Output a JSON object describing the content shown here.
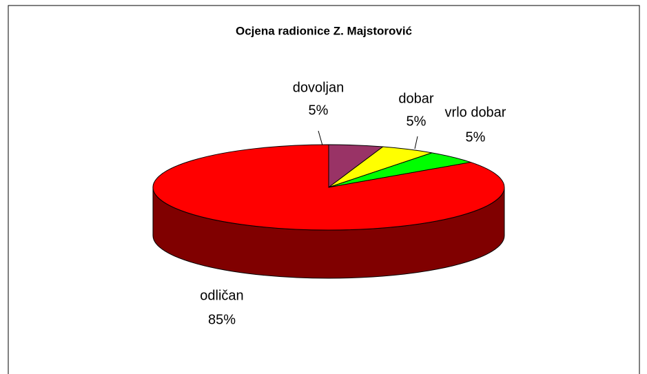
{
  "chart_data": {
    "type": "pie",
    "title": "Ocjena radionice Z. Majstorović",
    "categories": [
      "dovoljan",
      "dobar",
      "vrlo dobar",
      "odličan"
    ],
    "values": [
      5,
      5,
      5,
      85
    ],
    "value_labels": [
      "5%",
      "5%",
      "5%",
      "85%"
    ],
    "colors": [
      "#993366",
      "#ffff00",
      "#00ff00",
      "#ff0000"
    ]
  }
}
